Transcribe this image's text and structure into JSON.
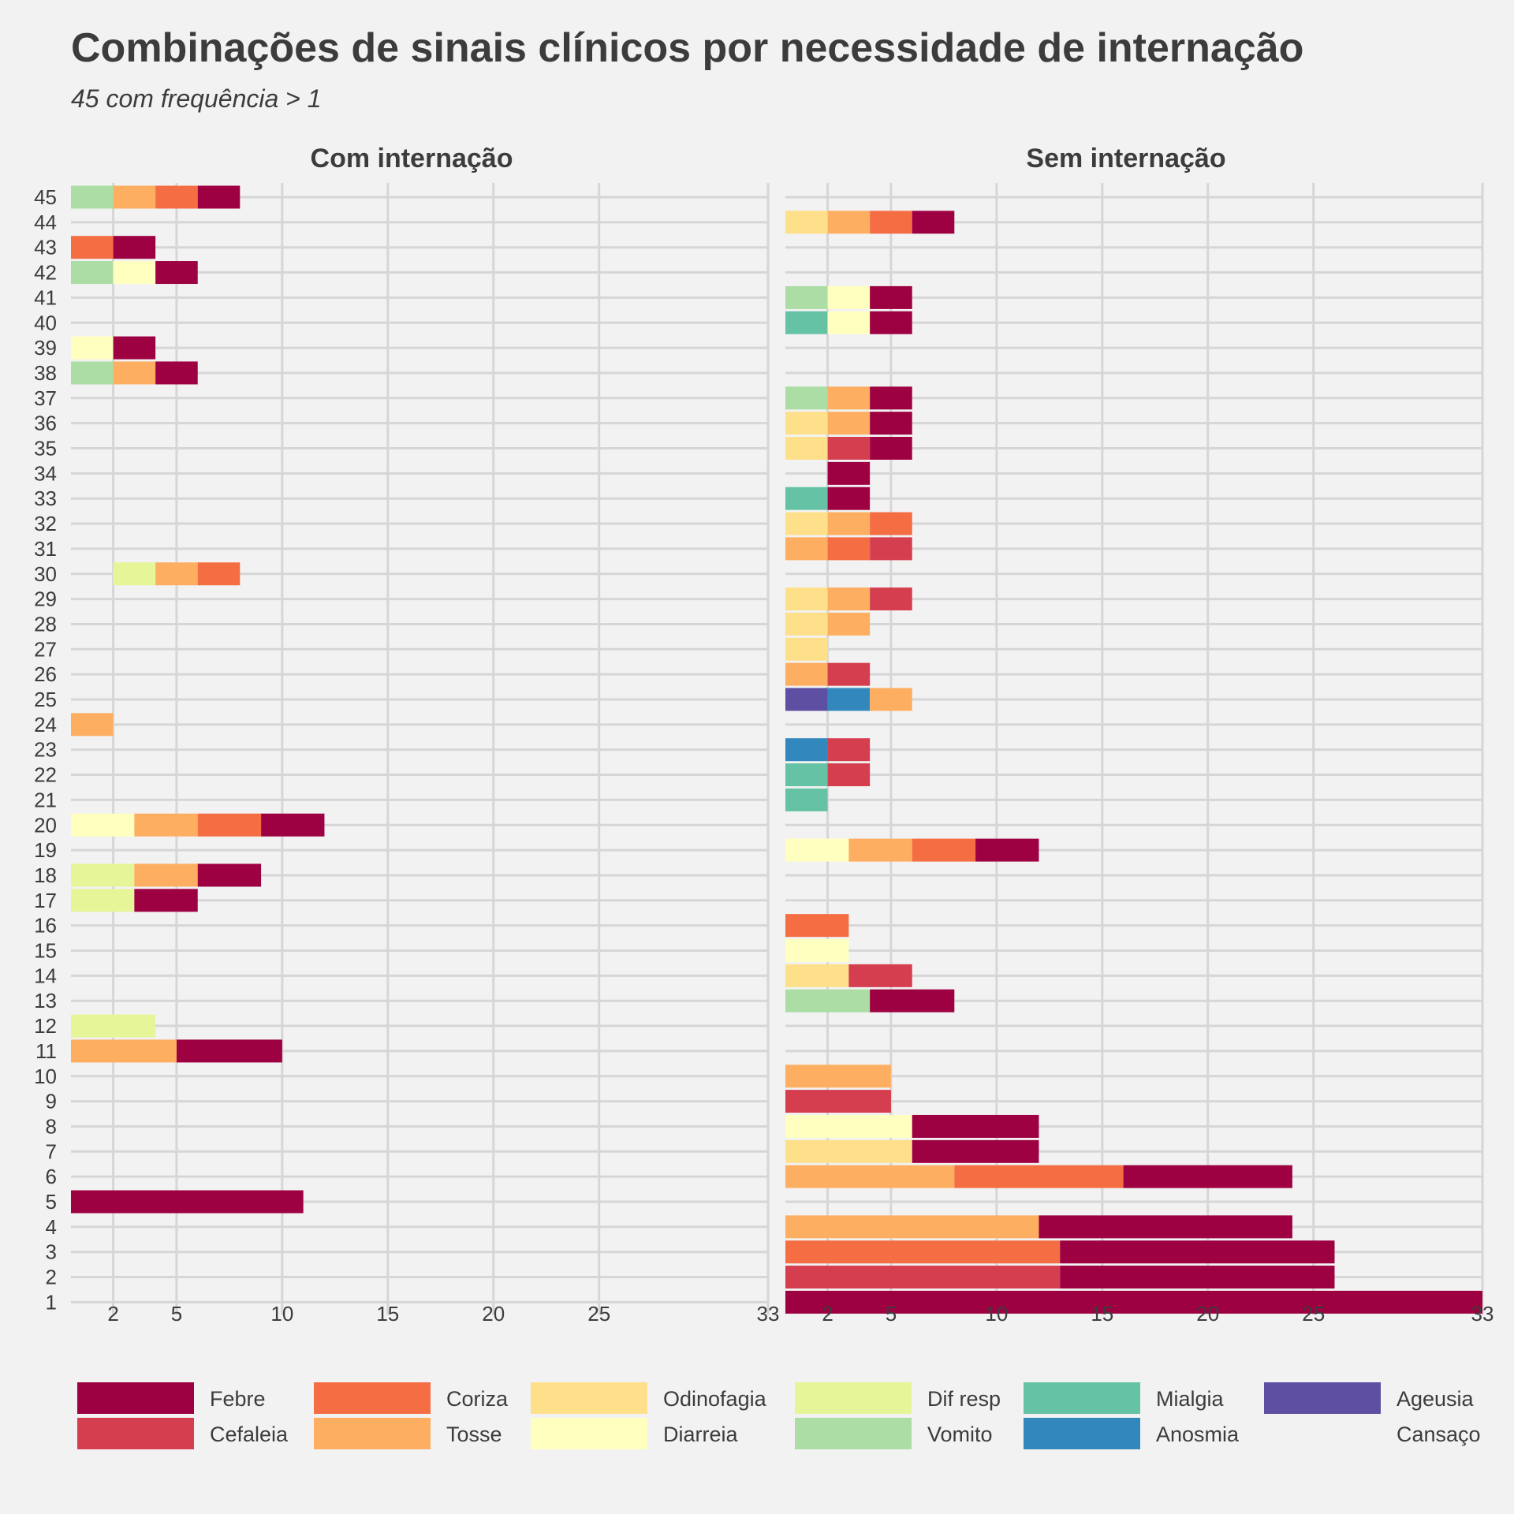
{
  "chart_data": {
    "type": "bar",
    "orientation": "horizontal-stacked",
    "title": "Combinações de sinais clínicos por necessidade de internação",
    "subtitle": "45 com frequência > 1",
    "x_ticks": [
      "2",
      "5",
      "10",
      "15",
      "20",
      "25",
      "33"
    ],
    "x_tick_values": [
      2,
      5,
      10,
      15,
      20,
      25,
      33
    ],
    "xlim": [
      0,
      33
    ],
    "y_categories": [
      1,
      2,
      3,
      4,
      5,
      6,
      7,
      8,
      9,
      10,
      11,
      12,
      13,
      14,
      15,
      16,
      17,
      18,
      19,
      20,
      21,
      22,
      23,
      24,
      25,
      26,
      27,
      28,
      29,
      30,
      31,
      32,
      33,
      34,
      35,
      36,
      37,
      38,
      39,
      40,
      41,
      42,
      43,
      44,
      45
    ],
    "grid": true,
    "legend_position": "bottom",
    "symptoms": [
      {
        "name": "Febre",
        "color": "#9e0142"
      },
      {
        "name": "Cefaleia",
        "color": "#d53e4f"
      },
      {
        "name": "Coriza",
        "color": "#f46d43"
      },
      {
        "name": "Tosse",
        "color": "#fdae61"
      },
      {
        "name": "Odinofagia",
        "color": "#fee08b"
      },
      {
        "name": "Diarreia",
        "color": "#ffffbf"
      },
      {
        "name": "Dif resp",
        "color": "#e6f598"
      },
      {
        "name": "Vomito",
        "color": "#abdda4"
      },
      {
        "name": "Mialgia",
        "color": "#66c2a5"
      },
      {
        "name": "Anosmia",
        "color": "#3288bd"
      },
      {
        "name": "Ageusia",
        "color": "#5e4fa2"
      },
      {
        "name": "Cansaço",
        "color": ""
      }
    ],
    "facets": [
      {
        "label": "Com internação",
        "rows": [
          {
            "y": 45,
            "segments": [
              [
                "Vomito",
                2
              ],
              [
                "Tosse",
                2
              ],
              [
                "Coriza",
                2
              ],
              [
                "Febre",
                2
              ]
            ]
          },
          {
            "y": 43,
            "segments": [
              [
                "Coriza",
                2
              ],
              [
                "Febre",
                2
              ]
            ]
          },
          {
            "y": 42,
            "segments": [
              [
                "Vomito",
                2
              ],
              [
                "Diarreia",
                2
              ],
              [
                "Febre",
                2
              ]
            ]
          },
          {
            "y": 39,
            "segments": [
              [
                "Diarreia",
                2
              ],
              [
                "Febre",
                2
              ]
            ]
          },
          {
            "y": 38,
            "segments": [
              [
                "Vomito",
                2
              ],
              [
                "Tosse",
                2
              ],
              [
                "Febre",
                2
              ]
            ]
          },
          {
            "y": 30,
            "segments": [
              [
                "Dif resp",
                2
              ],
              [
                "Tosse",
                2
              ],
              [
                "Coriza",
                2
              ]
            ],
            "start": 2
          },
          {
            "y": 24,
            "segments": [
              [
                "Tosse",
                2
              ]
            ]
          },
          {
            "y": 20,
            "segments": [
              [
                "Diarreia",
                3
              ],
              [
                "Tosse",
                3
              ],
              [
                "Coriza",
                3
              ],
              [
                "Febre",
                3
              ]
            ]
          },
          {
            "y": 18,
            "segments": [
              [
                "Dif resp",
                3
              ],
              [
                "Tosse",
                3
              ],
              [
                "Febre",
                3
              ]
            ]
          },
          {
            "y": 17,
            "segments": [
              [
                "Dif resp",
                3
              ],
              [
                "Febre",
                3
              ]
            ]
          },
          {
            "y": 12,
            "segments": [
              [
                "Dif resp",
                4
              ]
            ]
          },
          {
            "y": 11,
            "segments": [
              [
                "Tosse",
                5
              ],
              [
                "Febre",
                5
              ]
            ]
          },
          {
            "y": 5,
            "segments": [
              [
                "Febre",
                11
              ]
            ]
          }
        ]
      },
      {
        "label": "Sem internação",
        "rows": [
          {
            "y": 44,
            "segments": [
              [
                "Odinofagia",
                2
              ],
              [
                "Tosse",
                2
              ],
              [
                "Coriza",
                2
              ],
              [
                "Febre",
                2
              ]
            ]
          },
          {
            "y": 41,
            "segments": [
              [
                "Vomito",
                2
              ],
              [
                "Diarreia",
                2
              ],
              [
                "Febre",
                2
              ]
            ]
          },
          {
            "y": 40,
            "segments": [
              [
                "Mialgia",
                2
              ],
              [
                "Diarreia",
                2
              ],
              [
                "Febre",
                2
              ]
            ]
          },
          {
            "y": 37,
            "segments": [
              [
                "Vomito",
                2
              ],
              [
                "Tosse",
                2
              ],
              [
                "Febre",
                2
              ]
            ]
          },
          {
            "y": 36,
            "segments": [
              [
                "Odinofagia",
                2
              ],
              [
                "Tosse",
                2
              ],
              [
                "Febre",
                2
              ]
            ]
          },
          {
            "y": 35,
            "segments": [
              [
                "Odinofagia",
                2
              ],
              [
                "Cefaleia",
                2
              ],
              [
                "Febre",
                2
              ]
            ]
          },
          {
            "y": 34,
            "segments": [
              [
                "Febre",
                2
              ]
            ],
            "start": 2
          },
          {
            "y": 33,
            "segments": [
              [
                "Mialgia",
                2
              ],
              [
                "Febre",
                2
              ]
            ]
          },
          {
            "y": 32,
            "segments": [
              [
                "Odinofagia",
                2
              ],
              [
                "Tosse",
                2
              ],
              [
                "Coriza",
                2
              ]
            ]
          },
          {
            "y": 31,
            "segments": [
              [
                "Tosse",
                2
              ],
              [
                "Coriza",
                2
              ],
              [
                "Cefaleia",
                2
              ]
            ]
          },
          {
            "y": 29,
            "segments": [
              [
                "Odinofagia",
                2
              ],
              [
                "Tosse",
                2
              ],
              [
                "Cefaleia",
                2
              ]
            ]
          },
          {
            "y": 28,
            "segments": [
              [
                "Odinofagia",
                2
              ],
              [
                "Tosse",
                2
              ]
            ]
          },
          {
            "y": 27,
            "segments": [
              [
                "Odinofagia",
                2
              ]
            ]
          },
          {
            "y": 26,
            "segments": [
              [
                "Tosse",
                2
              ],
              [
                "Cefaleia",
                2
              ]
            ]
          },
          {
            "y": 25,
            "segments": [
              [
                "Ageusia",
                2
              ],
              [
                "Anosmia",
                2
              ],
              [
                "Tosse",
                2
              ]
            ]
          },
          {
            "y": 23,
            "segments": [
              [
                "Anosmia",
                2
              ],
              [
                "Cefaleia",
                2
              ]
            ]
          },
          {
            "y": 22,
            "segments": [
              [
                "Mialgia",
                2
              ],
              [
                "Cefaleia",
                2
              ]
            ]
          },
          {
            "y": 21,
            "segments": [
              [
                "Mialgia",
                2
              ]
            ]
          },
          {
            "y": 19,
            "segments": [
              [
                "Diarreia",
                3
              ],
              [
                "Tosse",
                3
              ],
              [
                "Coriza",
                3
              ],
              [
                "Febre",
                3
              ]
            ]
          },
          {
            "y": 16,
            "segments": [
              [
                "Coriza",
                3
              ]
            ]
          },
          {
            "y": 15,
            "segments": [
              [
                "Diarreia",
                3
              ]
            ]
          },
          {
            "y": 14,
            "segments": [
              [
                "Odinofagia",
                3
              ],
              [
                "Cefaleia",
                3
              ]
            ]
          },
          {
            "y": 13,
            "segments": [
              [
                "Vomito",
                4
              ],
              [
                "Febre",
                4
              ]
            ]
          },
          {
            "y": 10,
            "segments": [
              [
                "Tosse",
                5
              ]
            ]
          },
          {
            "y": 9,
            "segments": [
              [
                "Cefaleia",
                5
              ]
            ]
          },
          {
            "y": 8,
            "segments": [
              [
                "Diarreia",
                6
              ],
              [
                "Febre",
                6
              ]
            ]
          },
          {
            "y": 7,
            "segments": [
              [
                "Odinofagia",
                6
              ],
              [
                "Febre",
                6
              ]
            ]
          },
          {
            "y": 6,
            "segments": [
              [
                "Tosse",
                8
              ],
              [
                "Coriza",
                8
              ],
              [
                "Febre",
                8
              ]
            ]
          },
          {
            "y": 4,
            "segments": [
              [
                "Tosse",
                12
              ],
              [
                "Febre",
                12
              ]
            ]
          },
          {
            "y": 3,
            "segments": [
              [
                "Coriza",
                13
              ],
              [
                "Febre",
                13
              ]
            ]
          },
          {
            "y": 2,
            "segments": [
              [
                "Cefaleia",
                13
              ],
              [
                "Febre",
                13
              ]
            ]
          },
          {
            "y": 1,
            "segments": [
              [
                "Febre",
                33
              ]
            ]
          }
        ]
      }
    ]
  }
}
